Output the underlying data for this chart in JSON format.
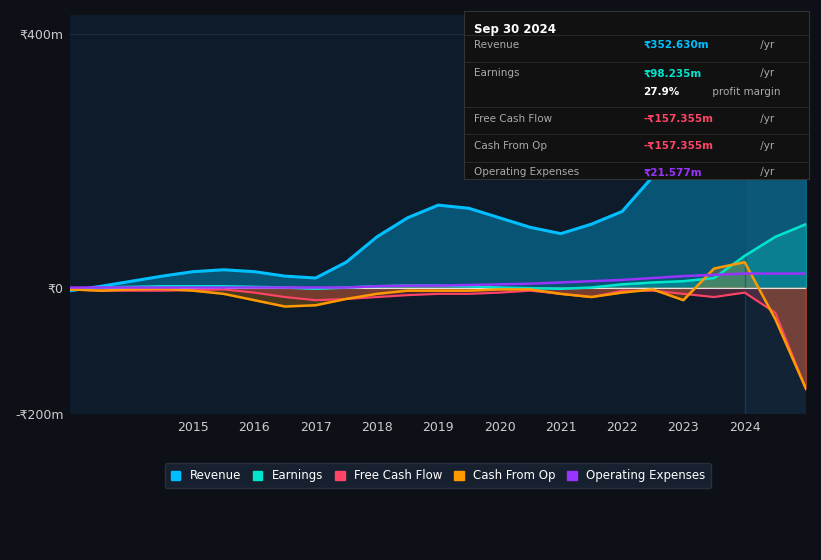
{
  "background_color": "#0d1117",
  "plot_bg_color": "#0d1b2a",
  "grid_color": "#2a3a4a",
  "years": [
    2013,
    2013.5,
    2014,
    2014.5,
    2015,
    2015.5,
    2016,
    2016.5,
    2017,
    2017.5,
    2018,
    2018.5,
    2019,
    2019.5,
    2020,
    2020.5,
    2021,
    2021.5,
    2022,
    2022.5,
    2023,
    2023.5,
    2024,
    2024.5,
    2025
  ],
  "revenue": [
    -5,
    2,
    10,
    18,
    25,
    28,
    25,
    18,
    15,
    40,
    80,
    110,
    130,
    125,
    110,
    95,
    85,
    100,
    120,
    175,
    230,
    300,
    355,
    380,
    360
  ],
  "earnings": [
    -3,
    0,
    1,
    2,
    2,
    2,
    1,
    0,
    -2,
    0,
    2,
    3,
    3,
    2,
    0,
    -1,
    -2,
    0,
    5,
    8,
    10,
    15,
    50,
    80,
    100
  ],
  "free_cash_flow": [
    -3,
    -5,
    -5,
    -5,
    -4,
    -3,
    -8,
    -15,
    -20,
    -18,
    -15,
    -12,
    -10,
    -10,
    -8,
    -5,
    -10,
    -15,
    -5,
    -5,
    -10,
    -15,
    -8,
    -40,
    -160
  ],
  "cash_from_op": [
    -3,
    -5,
    -3,
    -2,
    -5,
    -10,
    -20,
    -30,
    -28,
    -18,
    -10,
    -5,
    -5,
    -5,
    -3,
    -3,
    -10,
    -15,
    -8,
    -3,
    -20,
    30,
    40,
    -50,
    -160
  ],
  "operating_expenses": [
    0,
    0,
    0,
    0,
    0,
    0,
    0,
    0,
    0,
    0,
    2,
    3,
    3,
    4,
    5,
    6,
    8,
    10,
    12,
    15,
    18,
    20,
    22,
    22,
    22
  ],
  "revenue_color": "#00bfff",
  "earnings_color": "#00e5cc",
  "free_cash_flow_color": "#ff4466",
  "cash_from_op_color": "#ff9900",
  "operating_expenses_color": "#9933ff",
  "ylim_min": -200,
  "ylim_max": 430,
  "yticks": [
    400,
    0,
    -200
  ],
  "ytick_labels": [
    "₹400m",
    "₹0",
    "-₹200m"
  ],
  "info_box": {
    "date": "Sep 30 2024",
    "revenue_label": "Revenue",
    "revenue_value": "₹352.630m",
    "revenue_unit": " /yr",
    "earnings_label": "Earnings",
    "earnings_value": "₹98.235m",
    "earnings_unit": " /yr",
    "margin_text": "27.9%",
    "margin_label": " profit margin",
    "fcf_label": "Free Cash Flow",
    "fcf_value": "-₹157.355m",
    "fcf_unit": " /yr",
    "cop_label": "Cash From Op",
    "cop_value": "-₹157.355m",
    "cop_unit": " /yr",
    "opex_label": "Operating Expenses",
    "opex_value": "₹21.577m",
    "opex_unit": " /yr",
    "bg_color": "#111111",
    "border_color": "#333333",
    "text_color": "#aaaaaa",
    "title_color": "#ffffff"
  },
  "legend_items": [
    {
      "label": "Revenue",
      "color": "#00bfff"
    },
    {
      "label": "Earnings",
      "color": "#00e5cc"
    },
    {
      "label": "Free Cash Flow",
      "color": "#ff4466"
    },
    {
      "label": "Cash From Op",
      "color": "#ff9900"
    },
    {
      "label": "Operating Expenses",
      "color": "#9933ff"
    }
  ]
}
